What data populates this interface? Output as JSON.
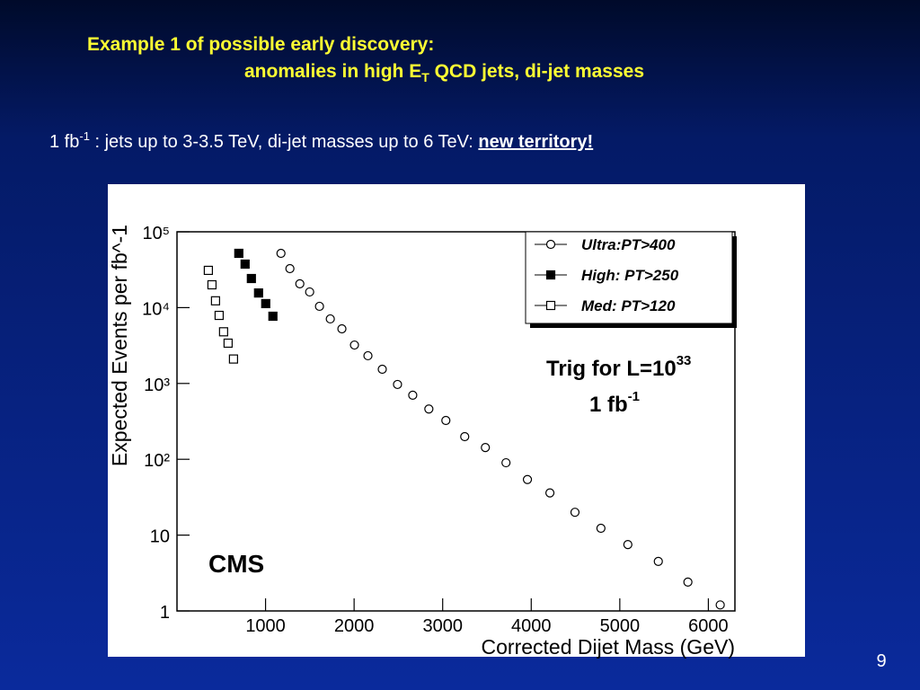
{
  "slide": {
    "title_line1": "Example 1 of possible early discovery:",
    "title_line2": {
      "before": "anomalies in high E",
      "sub": "T",
      "after": " QCD jets, di-jet masses"
    },
    "subtitle": {
      "before": "1 fb",
      "sup": "-1",
      "middle": " : jets up to 3-3.5 TeV, di-jet masses up to 6 TeV: ",
      "emph": "new territory!"
    },
    "page_number": "9"
  },
  "chart_data": {
    "type": "scatter",
    "xlabel": "Corrected Dijet Mass (GeV)",
    "ylabel": "Expected Events per fb^-1",
    "xlim": [
      0,
      6300
    ],
    "ylim": [
      1,
      100000
    ],
    "log_y": true,
    "xticks": [
      1000,
      2000,
      3000,
      4000,
      5000,
      6000
    ],
    "yticks": [
      1,
      10,
      {
        "value": 100,
        "label": "10²"
      },
      {
        "value": 1000,
        "label": "10³"
      },
      {
        "value": 10000,
        "label": "10⁴"
      },
      {
        "value": 100000,
        "label": "10⁵"
      }
    ],
    "legend": "top-right",
    "annotations": [
      {
        "text": "Trig for L=10",
        "sup": "33"
      },
      {
        "text": "1 fb",
        "sup": "-1"
      },
      {
        "text": "CMS"
      }
    ],
    "series": [
      {
        "name": "Ultra:PT>400",
        "marker": "open-circle",
        "color": "#000000",
        "x": [
          1174,
          1275,
          1387,
          1498,
          1609,
          1731,
          1862,
          2004,
          2156,
          2318,
          2490,
          2662,
          2844,
          3036,
          3249,
          3482,
          3715,
          3957,
          4211,
          4494,
          4787,
          5091,
          5435,
          5769,
          6134
        ],
        "values": [
          52000,
          32700,
          20600,
          16100,
          10400,
          7100,
          5250,
          3210,
          2320,
          1540,
          970,
          700,
          460,
          325,
          199,
          143,
          90,
          54,
          36,
          20,
          12.3,
          7.5,
          4.5,
          2.4,
          1.2
        ]
      },
      {
        "name": "High: PT>250",
        "marker": "filled-square",
        "color": "#000000",
        "x": [
          698,
          769,
          840,
          921,
          1002,
          1083
        ],
        "values": [
          52000,
          37500,
          24200,
          15600,
          11300,
          7700
        ]
      },
      {
        "name": "Med:  PT>120",
        "marker": "open-square",
        "color": "#000000",
        "x": [
          354,
          395,
          435,
          476,
          526,
          577,
          638
        ],
        "values": [
          31000,
          20000,
          12300,
          7900,
          4800,
          3400,
          2100
        ]
      }
    ]
  }
}
